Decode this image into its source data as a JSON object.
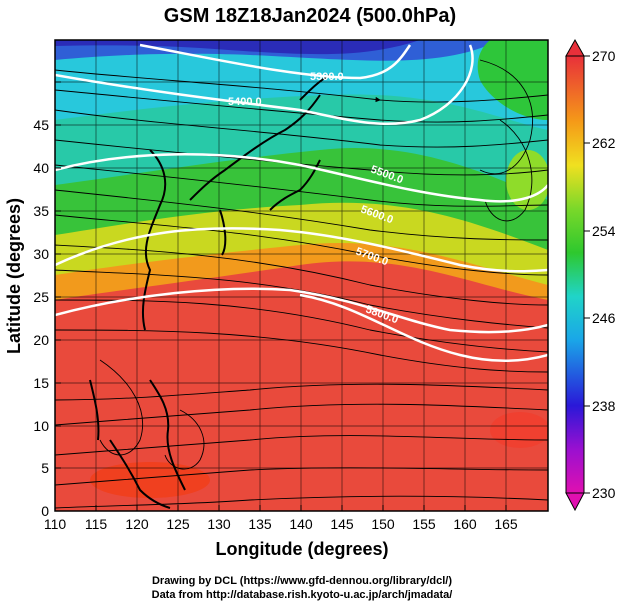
{
  "title": "GSM 18Z18Jan2024 (500.0hPa)",
  "xlabel": "Longitude (degrees)",
  "ylabel": "Latitude  (degrees)",
  "credits": [
    "Drawing by DCL (https://www.gfd-dennou.org/library/dcl/)",
    "Data from http://database.rish.kyoto-u.ac.jp/arch/jmadata/"
  ],
  "x_ticks": [
    "110",
    "115",
    "120",
    "125",
    "130",
    "135",
    "140",
    "145",
    "150",
    "155",
    "160",
    "165"
  ],
  "y_ticks": [
    "0",
    "5",
    "10",
    "15",
    "20",
    "25",
    "30",
    "35",
    "40",
    "45"
  ],
  "colorbar_ticks": [
    "230",
    "238",
    "246",
    "254",
    "262",
    "270"
  ],
  "contour_labels": [
    "5300.0",
    "5400.0",
    "5500.0",
    "5600.0",
    "5700.0",
    "5800.0"
  ],
  "colors": {
    "cold": "#2b2fb8",
    "cool": "#23c9d8",
    "mild": "#3cc83c",
    "warm": "#f5a21b",
    "hot": "#e8463b",
    "contour": "#ffffff"
  }
}
